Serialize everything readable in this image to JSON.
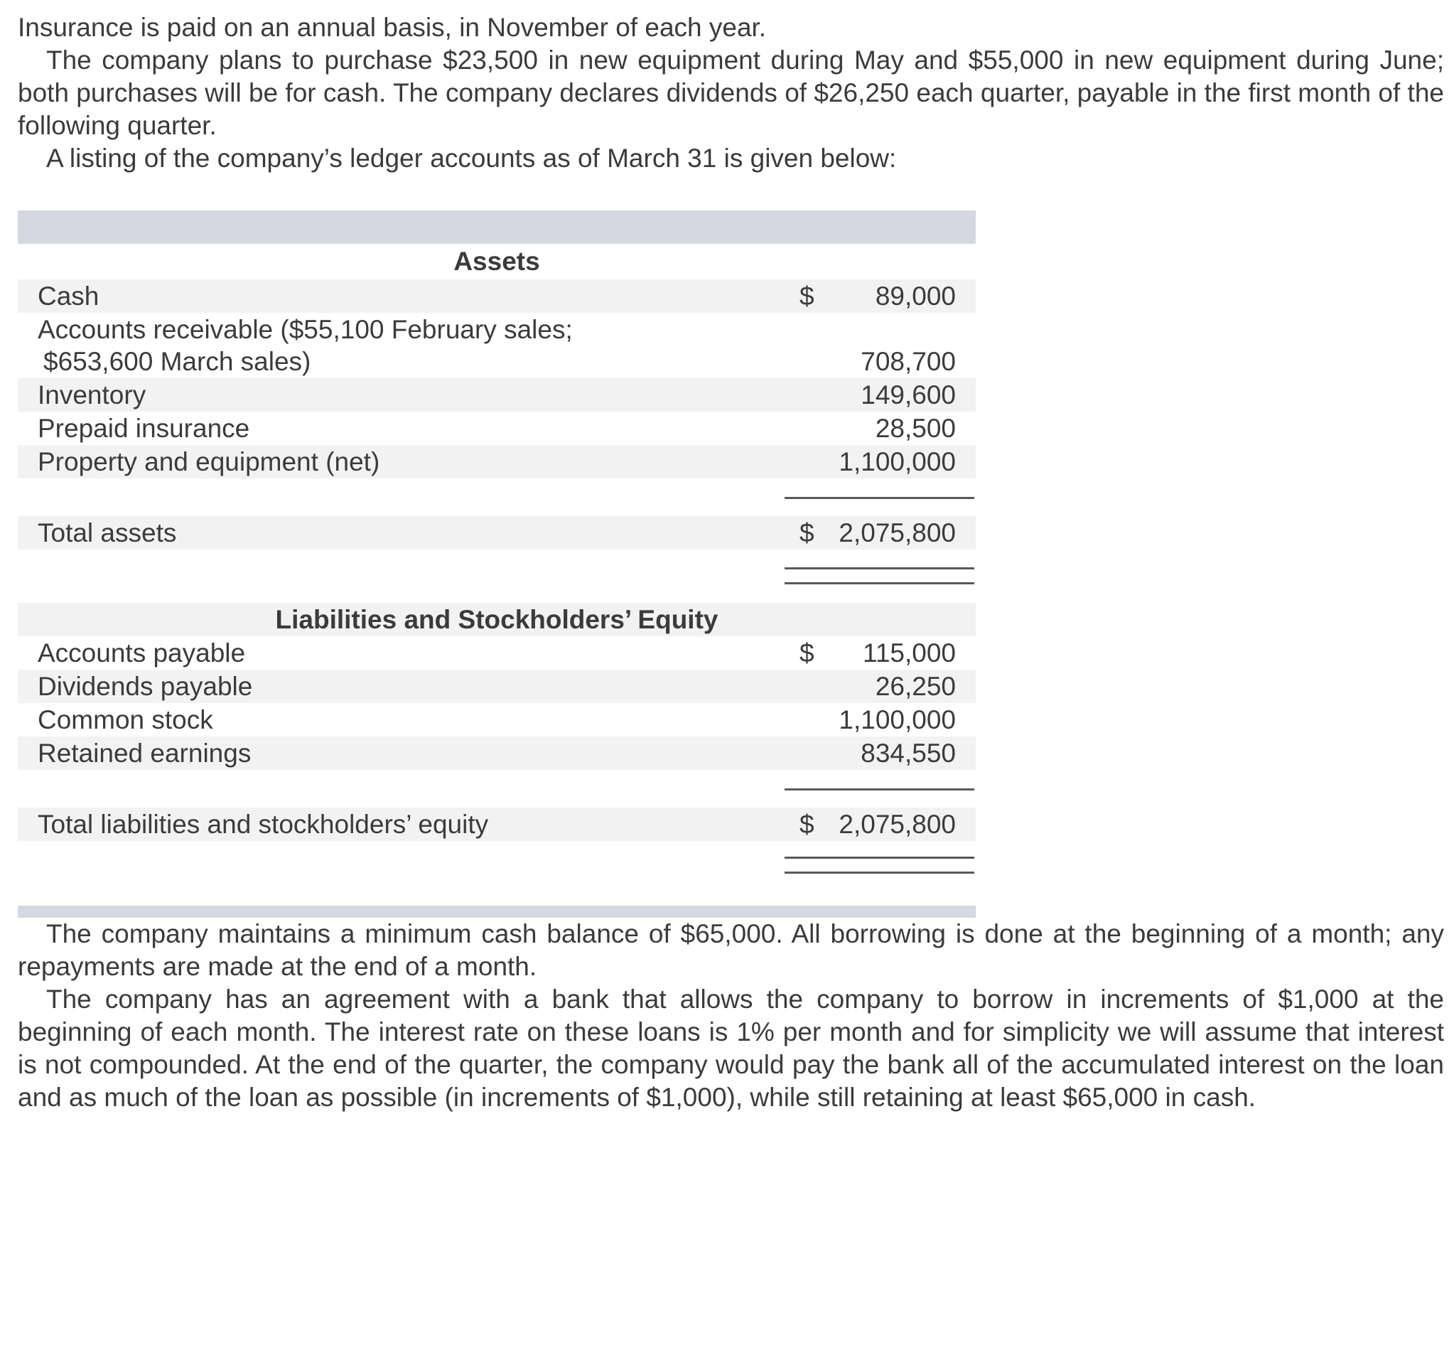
{
  "paragraphs": {
    "p1": "Insurance is paid on an annual basis, in November of each year.",
    "p2": "The company plans to purchase $23,500 in new equipment during May and $55,000 in new equipment during June; both purchases will be for cash. The company declares dividends of $26,250 each quarter, payable in the first month of the following quarter.",
    "p3": "A listing of the company’s ledger accounts as of March 31 is given below:",
    "p4": "The company maintains a minimum cash balance of $65,000. All borrowing is done at the beginning of a month; any repayments are made at the end of a month.",
    "p5": "The company has an agreement with a bank that allows the company to borrow in increments of $1,000 at the beginning of each month. The interest rate on these loans is 1% per month and for simplicity we will assume that interest is not compounded. At the end of the quarter, the company would pay the bank all of the accumulated interest on the loan and as much of the loan as possible (in increments of $1,000), while still retaining at least $65,000 in cash."
  },
  "ledger": {
    "assets": {
      "section_title": "Assets",
      "rows": [
        {
          "label": "Cash",
          "currency": "$",
          "value": "89,000"
        },
        {
          "label": "Accounts receivable ($55,100 February sales;",
          "label_line2": "$653,600 March sales)",
          "currency": "",
          "value": "708,700"
        },
        {
          "label": "Inventory",
          "currency": "",
          "value": "149,600"
        },
        {
          "label": "Prepaid insurance",
          "currency": "",
          "value": "28,500"
        },
        {
          "label": "Property and equipment (net)",
          "currency": "",
          "value": "1,100,000"
        }
      ],
      "total": {
        "label": "Total assets",
        "currency": "$",
        "value": "2,075,800"
      }
    },
    "liabilities": {
      "section_title": "Liabilities and Stockholders’ Equity",
      "rows": [
        {
          "label": "Accounts payable",
          "currency": "$",
          "value": "115,000"
        },
        {
          "label": "Dividends payable",
          "currency": "",
          "value": "26,250"
        },
        {
          "label": "Common stock",
          "currency": "",
          "value": "1,100,000"
        },
        {
          "label": "Retained earnings",
          "currency": "",
          "value": "834,550"
        }
      ],
      "total": {
        "label": "Total liabilities and stockholders’ equity",
        "currency": "$",
        "value": "2,075,800"
      }
    },
    "colors": {
      "band": "#d5d8e1",
      "row_stripe": "#f2f2f2",
      "rule": "#595959",
      "text": "#3b3b3b"
    }
  }
}
